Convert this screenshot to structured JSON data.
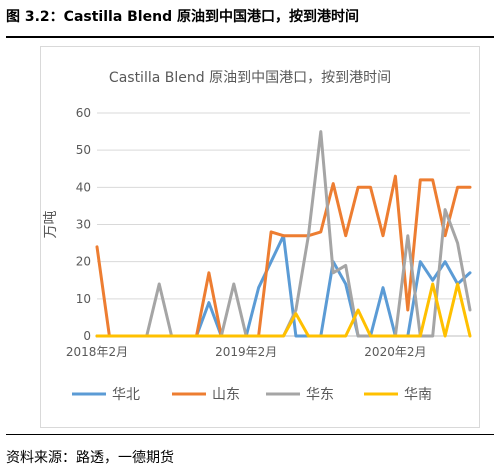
{
  "figure": {
    "caption": "图 3.2：Castilla Blend 原油到中国港口，按到港时间",
    "source": "资料来源：路透，一德期货"
  },
  "colors": {
    "华北": "#5B9BD5",
    "山东": "#ED7D31",
    "华东": "#A5A5A5",
    "华南": "#FFC000",
    "grid": "#d9d9d9",
    "axis": "#bfbfbf",
    "text": "#595959"
  },
  "chart_data": {
    "type": "line",
    "title": "Castilla Blend 原油到中国港口，按到港时间",
    "ylabel": "万吨",
    "xlabel": "",
    "ylim": [
      0,
      60
    ],
    "yticks": [
      0,
      10,
      20,
      30,
      40,
      50,
      60
    ],
    "grid": true,
    "legend_position": "bottom",
    "x_tick_labels": [
      {
        "index": 0,
        "label": "2018年2月"
      },
      {
        "index": 12,
        "label": "2019年2月"
      },
      {
        "index": 24,
        "label": "2020年2月"
      }
    ],
    "x": [
      "2018-02",
      "2018-03",
      "2018-04",
      "2018-05",
      "2018-06",
      "2018-07",
      "2018-08",
      "2018-09",
      "2018-10",
      "2018-11",
      "2018-12",
      "2019-01",
      "2019-02",
      "2019-03",
      "2019-04",
      "2019-05",
      "2019-06",
      "2019-07",
      "2019-08",
      "2019-09",
      "2019-10",
      "2019-11",
      "2019-12",
      "2020-01",
      "2020-02",
      "2020-03",
      "2020-04",
      "2020-05",
      "2020-06",
      "2020-07",
      "2020-08"
    ],
    "series": [
      {
        "name": "华北",
        "values": [
          0,
          0,
          0,
          0,
          0,
          0,
          0,
          0,
          0,
          9,
          0,
          0,
          0,
          13,
          20,
          27,
          0,
          0,
          0,
          20,
          14,
          0,
          0,
          13,
          0,
          0,
          20,
          15,
          20,
          14,
          17
        ]
      },
      {
        "name": "山东",
        "values": [
          24,
          0,
          0,
          0,
          0,
          0,
          0,
          0,
          0,
          17,
          0,
          0,
          0,
          0,
          28,
          27,
          27,
          27,
          28,
          41,
          27,
          40,
          40,
          27,
          43,
          7,
          42,
          42,
          27,
          40,
          40
        ]
      },
      {
        "name": "华东",
        "values": [
          0,
          0,
          0,
          0,
          0,
          14,
          0,
          0,
          0,
          0,
          0,
          14,
          0,
          0,
          0,
          0,
          7,
          27,
          55,
          17,
          19,
          0,
          0,
          0,
          0,
          27,
          0,
          0,
          34,
          25,
          7
        ]
      },
      {
        "name": "华南",
        "values": [
          0,
          0,
          0,
          0,
          0,
          0,
          0,
          0,
          0,
          0,
          0,
          0,
          0,
          0,
          0,
          0,
          6,
          0,
          0,
          0,
          0,
          7,
          0,
          0,
          0,
          0,
          0,
          14,
          0,
          14,
          0
        ]
      }
    ]
  }
}
